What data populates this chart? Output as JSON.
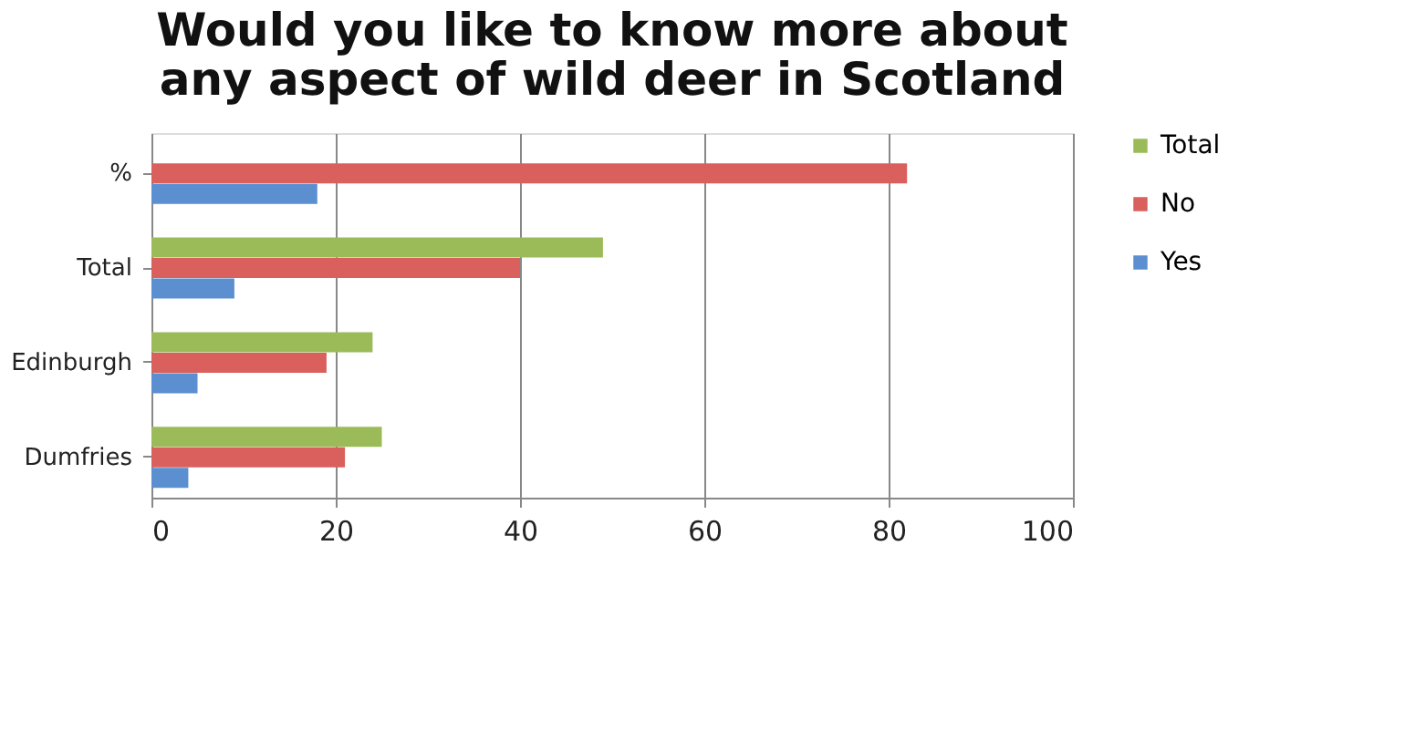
{
  "chart_data": {
    "type": "bar",
    "orientation": "horizontal",
    "title": [
      "Would you like to know more about",
      "any aspect of wild deer in Scotland"
    ],
    "categories": [
      "%",
      "Total",
      "Edinburgh",
      "Dumfries"
    ],
    "series": [
      {
        "name": "Total",
        "color": "#9bbb59",
        "values": [
          null,
          49,
          24,
          25
        ]
      },
      {
        "name": "No",
        "color": "#d9605c",
        "values": [
          82,
          40,
          19,
          21
        ]
      },
      {
        "name": "Yes",
        "color": "#5b8fd0",
        "values": [
          18,
          9,
          5,
          4
        ]
      }
    ],
    "xlim": [
      0,
      100
    ],
    "xticks": [
      0,
      20,
      40,
      60,
      80,
      100
    ],
    "grid": "x",
    "legend": "right"
  }
}
